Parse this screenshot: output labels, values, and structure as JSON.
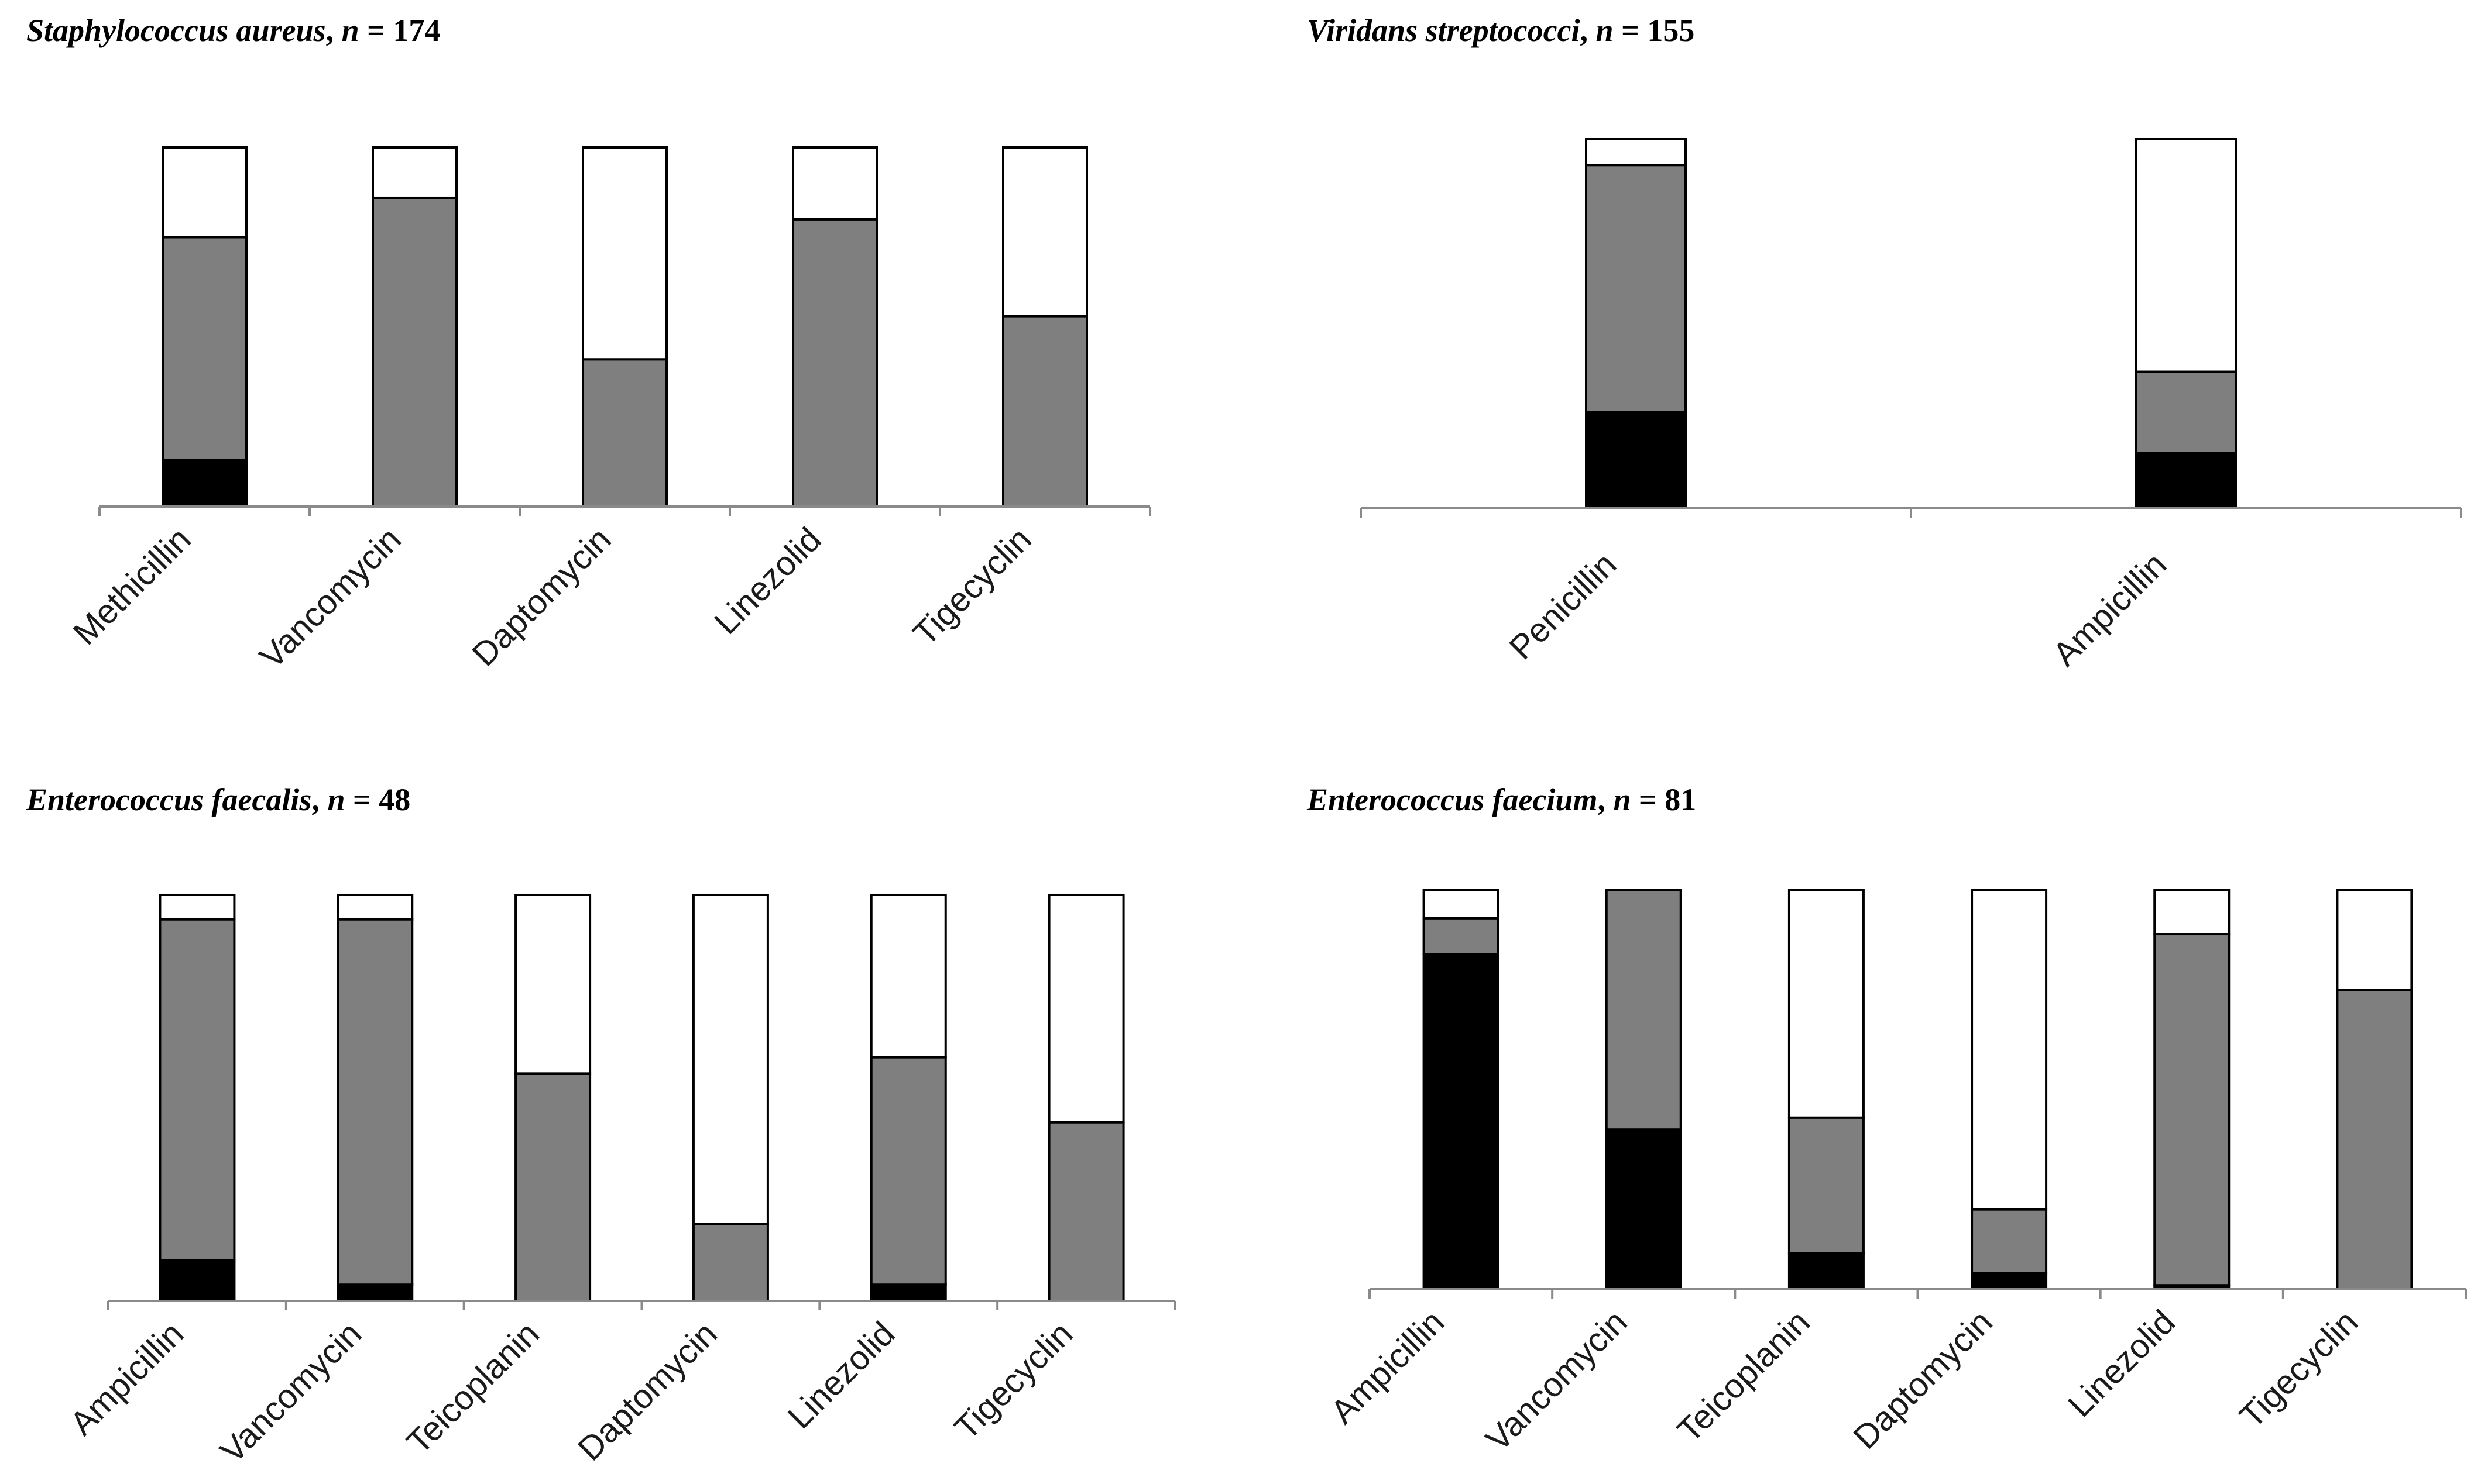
{
  "chart_data": [
    {
      "type": "bar",
      "stacked": true,
      "title": {
        "organism": "Staphylococcus aureus",
        "n_label": "n",
        "n_value": "174"
      },
      "categories": [
        "Methicillin",
        "Vancomycin",
        "Daptomycin",
        "Linezolid",
        "Tigecyclin"
      ],
      "series": [
        {
          "name": "black",
          "color": "#000000",
          "values": [
            13,
            0,
            0,
            0,
            0
          ]
        },
        {
          "name": "gray",
          "color": "#7f7f7f",
          "values": [
            62,
            86,
            41,
            80,
            53
          ]
        },
        {
          "name": "white",
          "color": "#ffffff",
          "values": [
            25,
            14,
            59,
            20,
            47
          ]
        }
      ],
      "ylim": [
        0,
        100
      ],
      "xlabel": "",
      "ylabel": ""
    },
    {
      "type": "bar",
      "stacked": true,
      "title": {
        "organism": "Viridans streptococci",
        "n_label": "n",
        "n_value": "155"
      },
      "categories": [
        "Penicillin",
        "Ampicillin"
      ],
      "series": [
        {
          "name": "black",
          "color": "#000000",
          "values": [
            26,
            15
          ]
        },
        {
          "name": "gray",
          "color": "#7f7f7f",
          "values": [
            67,
            22
          ]
        },
        {
          "name": "white",
          "color": "#ffffff",
          "values": [
            7,
            63
          ]
        }
      ],
      "ylim": [
        0,
        100
      ],
      "xlabel": "",
      "ylabel": ""
    },
    {
      "type": "bar",
      "stacked": true,
      "title": {
        "organism": "Enterococcus faecalis",
        "n_label": "n",
        "n_value": "48"
      },
      "categories": [
        "Ampicillin",
        "Vancomycin",
        "Teicoplanin",
        "Daptomycin",
        "Linezolid",
        "Tigecyclin"
      ],
      "series": [
        {
          "name": "black",
          "color": "#000000",
          "values": [
            10,
            4,
            0,
            0,
            4,
            0
          ]
        },
        {
          "name": "gray",
          "color": "#7f7f7f",
          "values": [
            84,
            90,
            56,
            19,
            56,
            44
          ]
        },
        {
          "name": "white",
          "color": "#ffffff",
          "values": [
            6,
            6,
            44,
            81,
            40,
            56
          ]
        }
      ],
      "ylim": [
        0,
        100
      ],
      "xlabel": "",
      "ylabel": ""
    },
    {
      "type": "bar",
      "stacked": true,
      "title": {
        "organism": "Enterococcus faecium",
        "n_label": "n",
        "n_value": "81"
      },
      "categories": [
        "Ampicillin",
        "Vancomycin",
        "Teicoplanin",
        "Daptomycin",
        "Linezolid",
        "Tigecyclin"
      ],
      "series": [
        {
          "name": "black",
          "color": "#000000",
          "values": [
            84,
            40,
            9,
            4,
            1,
            0
          ]
        },
        {
          "name": "gray",
          "color": "#7f7f7f",
          "values": [
            9,
            60,
            34,
            16,
            88,
            75
          ]
        },
        {
          "name": "white",
          "color": "#ffffff",
          "values": [
            7,
            0,
            57,
            80,
            11,
            25
          ]
        }
      ],
      "ylim": [
        0,
        100
      ],
      "xlabel": "",
      "ylabel": ""
    }
  ]
}
